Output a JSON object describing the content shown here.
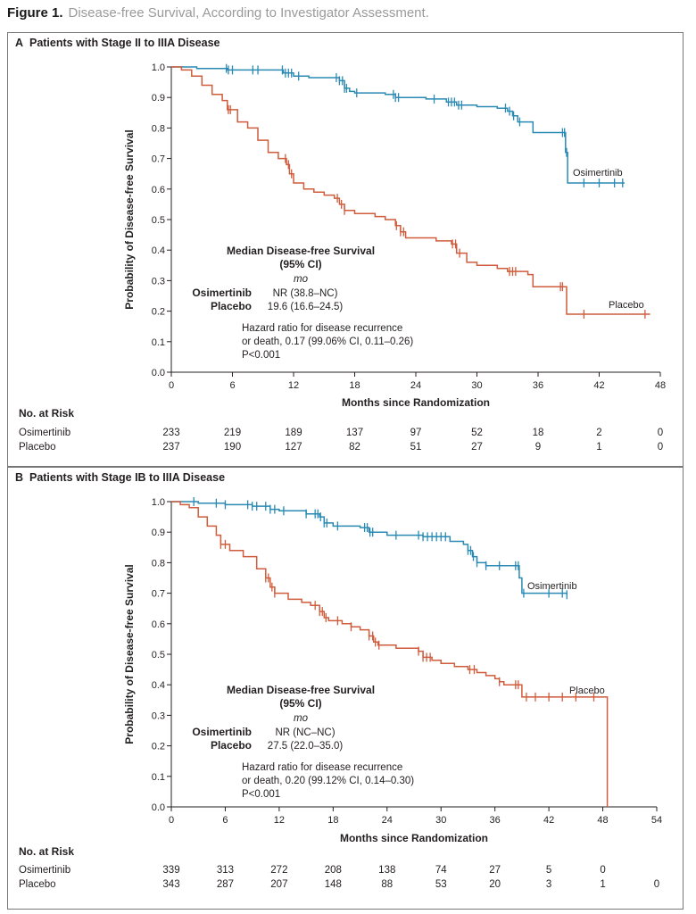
{
  "figure": {
    "label": "Figure 1.",
    "title": "Disease-free Survival, According to Investigator Assessment."
  },
  "colors": {
    "osimertinib": "#2a8ab4",
    "placebo": "#cf5c3c",
    "axis": "#231f20"
  },
  "chart_data": [
    {
      "type": "line",
      "step": true,
      "panel_label": "A",
      "title": "Patients with Stage II to IIIA Disease",
      "xlabel": "Months since Randomization",
      "ylabel": "Probability of Disease-free Survival",
      "xlim": [
        0,
        48
      ],
      "ylim": [
        0,
        1.0
      ],
      "x_ticks": [
        "0",
        "6",
        "12",
        "18",
        "24",
        "30",
        "36",
        "42",
        "48"
      ],
      "y_ticks": [
        "0.0",
        "0.1",
        "0.2",
        "0.3",
        "0.4",
        "0.5",
        "0.6",
        "0.7",
        "0.8",
        "0.9",
        "1.0"
      ],
      "series": [
        {
          "name": "Osimertinib",
          "color_key": "osimertinib",
          "points": [
            [
              0,
              1.0
            ],
            [
              2.5,
              0.995
            ],
            [
              5.5,
              0.99
            ],
            [
              11,
              0.98
            ],
            [
              12,
              0.97
            ],
            [
              13.5,
              0.965
            ],
            [
              16.5,
              0.955
            ],
            [
              17,
              0.93
            ],
            [
              17.5,
              0.92
            ],
            [
              18,
              0.915
            ],
            [
              21,
              0.91
            ],
            [
              22,
              0.9
            ],
            [
              25,
              0.895
            ],
            [
              27,
              0.885
            ],
            [
              28,
              0.875
            ],
            [
              30,
              0.87
            ],
            [
              32,
              0.865
            ],
            [
              33,
              0.855
            ],
            [
              33.5,
              0.84
            ],
            [
              34,
              0.82
            ],
            [
              35.5,
              0.785
            ],
            [
              38.5,
              0.785
            ],
            [
              38.7,
              0.72
            ],
            [
              38.9,
              0.62
            ],
            [
              44.5,
              0.62
            ]
          ],
          "censor_x": [
            5.4,
            5.6,
            6,
            8,
            8.5,
            10.9,
            11.2,
            11.5,
            11.8,
            12.5,
            16.2,
            16.5,
            16.8,
            17,
            17.2,
            18.2,
            21.8,
            22,
            22.3,
            25.8,
            27.2,
            27.5,
            27.8,
            28.2,
            28.5,
            32.8,
            33.2,
            33.6,
            34.2,
            38.4,
            38.6,
            38.8,
            40.5,
            42,
            43.5,
            44.3
          ],
          "end_label": "Osimertinib"
        },
        {
          "name": "Placebo",
          "color_key": "placebo",
          "points": [
            [
              0,
              1.0
            ],
            [
              1,
              0.99
            ],
            [
              2,
              0.97
            ],
            [
              3,
              0.94
            ],
            [
              4,
              0.91
            ],
            [
              5,
              0.89
            ],
            [
              5.5,
              0.86
            ],
            [
              6.5,
              0.82
            ],
            [
              7.5,
              0.8
            ],
            [
              8.5,
              0.76
            ],
            [
              9.5,
              0.72
            ],
            [
              10.5,
              0.7
            ],
            [
              11.3,
              0.68
            ],
            [
              11.6,
              0.65
            ],
            [
              12,
              0.62
            ],
            [
              13,
              0.6
            ],
            [
              14,
              0.59
            ],
            [
              15,
              0.58
            ],
            [
              16,
              0.57
            ],
            [
              16.5,
              0.55
            ],
            [
              17,
              0.53
            ],
            [
              18,
              0.52
            ],
            [
              20,
              0.51
            ],
            [
              21,
              0.5
            ],
            [
              22,
              0.48
            ],
            [
              22.5,
              0.46
            ],
            [
              23,
              0.44
            ],
            [
              26,
              0.43
            ],
            [
              27.5,
              0.42
            ],
            [
              28,
              0.39
            ],
            [
              29,
              0.36
            ],
            [
              30,
              0.35
            ],
            [
              32,
              0.34
            ],
            [
              33,
              0.33
            ],
            [
              35,
              0.32
            ],
            [
              35.5,
              0.28
            ],
            [
              38.5,
              0.28
            ],
            [
              38.8,
              0.19
            ],
            [
              47,
              0.19
            ]
          ],
          "censor_x": [
            5.6,
            5.8,
            11.2,
            11.5,
            11.8,
            16.3,
            16.7,
            17,
            22.1,
            22.5,
            22.8,
            27.6,
            27.9,
            28.3,
            33.2,
            33.5,
            33.8,
            38.2,
            38.4,
            40.5,
            46.5
          ],
          "end_label": "Placebo"
        }
      ],
      "annotation": {
        "heading": "Median Disease-free Survival",
        "heading2": "(95% CI)",
        "unit": "mo",
        "rows": [
          {
            "label": "Osimertinib",
            "value": "NR (38.8–NC)"
          },
          {
            "label": "Placebo",
            "value": "19.6 (16.6–24.5)"
          }
        ],
        "hazard_line1": "Hazard ratio for disease recurrence",
        "hazard_line2": "or death, 0.17 (99.06% CI, 0.11–0.26)",
        "p_value": "P<0.001"
      },
      "risk_table": {
        "heading": "No. at Risk",
        "rows": [
          {
            "label": "Osimertinib",
            "values": [
              "233",
              "219",
              "189",
              "137",
              "97",
              "52",
              "18",
              "2",
              "0"
            ]
          },
          {
            "label": "Placebo",
            "values": [
              "237",
              "190",
              "127",
              "82",
              "51",
              "27",
              "9",
              "1",
              "0"
            ]
          }
        ]
      }
    },
    {
      "type": "line",
      "step": true,
      "panel_label": "B",
      "title": "Patients with Stage IB to IIIA Disease",
      "xlabel": "Months since Randomization",
      "ylabel": "Probability of Disease-free Survival",
      "xlim": [
        0,
        54
      ],
      "ylim": [
        0,
        1.0
      ],
      "x_ticks": [
        "0",
        "6",
        "12",
        "18",
        "24",
        "30",
        "36",
        "42",
        "48",
        "54"
      ],
      "y_ticks": [
        "0.0",
        "0.1",
        "0.2",
        "0.3",
        "0.4",
        "0.5",
        "0.6",
        "0.7",
        "0.8",
        "0.9",
        "1.0"
      ],
      "series": [
        {
          "name": "Osimertinib",
          "color_key": "osimertinib",
          "points": [
            [
              0,
              1.0
            ],
            [
              3,
              0.995
            ],
            [
              6,
              0.99
            ],
            [
              9,
              0.985
            ],
            [
              11,
              0.975
            ],
            [
              12,
              0.97
            ],
            [
              15,
              0.96
            ],
            [
              16.5,
              0.95
            ],
            [
              17,
              0.93
            ],
            [
              18,
              0.92
            ],
            [
              21,
              0.915
            ],
            [
              22,
              0.9
            ],
            [
              24,
              0.89
            ],
            [
              28,
              0.885
            ],
            [
              31,
              0.87
            ],
            [
              32.5,
              0.86
            ],
            [
              33,
              0.84
            ],
            [
              33.5,
              0.82
            ],
            [
              34,
              0.8
            ],
            [
              35,
              0.79
            ],
            [
              38.5,
              0.79
            ],
            [
              38.7,
              0.75
            ],
            [
              39,
              0.7
            ],
            [
              44,
              0.695
            ]
          ],
          "censor_x": [
            2.5,
            5,
            6,
            8.5,
            9,
            9.5,
            10.5,
            11,
            11.5,
            12.5,
            15,
            16,
            16.3,
            16.6,
            17,
            17.3,
            18.5,
            21.5,
            21.8,
            22.1,
            22.4,
            25,
            27.5,
            28,
            28.5,
            29,
            29.5,
            30,
            30.5,
            33,
            33.3,
            33.6,
            34,
            35,
            36.5,
            38.3,
            38.6,
            39.2,
            42,
            43.5,
            44
          ],
          "end_label": "Osimertinib"
        },
        {
          "name": "Placebo",
          "color_key": "placebo",
          "points": [
            [
              0,
              1.0
            ],
            [
              1,
              0.99
            ],
            [
              2,
              0.98
            ],
            [
              3,
              0.95
            ],
            [
              4,
              0.92
            ],
            [
              5,
              0.89
            ],
            [
              5.5,
              0.86
            ],
            [
              6.5,
              0.84
            ],
            [
              8,
              0.82
            ],
            [
              9.5,
              0.78
            ],
            [
              10.5,
              0.75
            ],
            [
              11,
              0.72
            ],
            [
              11.5,
              0.7
            ],
            [
              13,
              0.68
            ],
            [
              14.5,
              0.67
            ],
            [
              15.5,
              0.66
            ],
            [
              16.5,
              0.64
            ],
            [
              17,
              0.62
            ],
            [
              17.5,
              0.61
            ],
            [
              19,
              0.6
            ],
            [
              20,
              0.59
            ],
            [
              21,
              0.58
            ],
            [
              22,
              0.56
            ],
            [
              22.5,
              0.54
            ],
            [
              23,
              0.53
            ],
            [
              25,
              0.52
            ],
            [
              27.5,
              0.51
            ],
            [
              28,
              0.49
            ],
            [
              29,
              0.48
            ],
            [
              30,
              0.47
            ],
            [
              31.5,
              0.46
            ],
            [
              33,
              0.45
            ],
            [
              34,
              0.44
            ],
            [
              35,
              0.43
            ],
            [
              36,
              0.42
            ],
            [
              36.5,
              0.41
            ],
            [
              37,
              0.4
            ],
            [
              38.7,
              0.4
            ],
            [
              39,
              0.36
            ],
            [
              48.5,
              0.36
            ],
            [
              48.5,
              0.0
            ]
          ],
          "censor_x": [
            5.5,
            6,
            10.5,
            10.8,
            11.2,
            11.5,
            16,
            16.5,
            16.8,
            17.2,
            18.5,
            20,
            22,
            22.4,
            22.7,
            23.1,
            27.5,
            28,
            28.4,
            28.8,
            33.2,
            33.7,
            36.5,
            38.3,
            38.6,
            39.5,
            40.5,
            42,
            43.5,
            45,
            47
          ],
          "end_label": "Placebo"
        }
      ],
      "annotation": {
        "heading": "Median Disease-free Survival",
        "heading2": "(95% CI)",
        "unit": "mo",
        "rows": [
          {
            "label": "Osimertinib",
            "value": "NR (NC–NC)"
          },
          {
            "label": "Placebo",
            "value": "27.5 (22.0–35.0)"
          }
        ],
        "hazard_line1": "Hazard ratio for disease recurrence",
        "hazard_line2": "or death, 0.20 (99.12% CI, 0.14–0.30)",
        "p_value": "P<0.001"
      },
      "risk_table": {
        "heading": "No. at Risk",
        "rows": [
          {
            "label": "Osimertinib",
            "values": [
              "339",
              "313",
              "272",
              "208",
              "138",
              "74",
              "27",
              "5",
              "0",
              ""
            ]
          },
          {
            "label": "Placebo",
            "values": [
              "343",
              "287",
              "207",
              "148",
              "88",
              "53",
              "20",
              "3",
              "1",
              "0"
            ]
          }
        ]
      }
    }
  ]
}
